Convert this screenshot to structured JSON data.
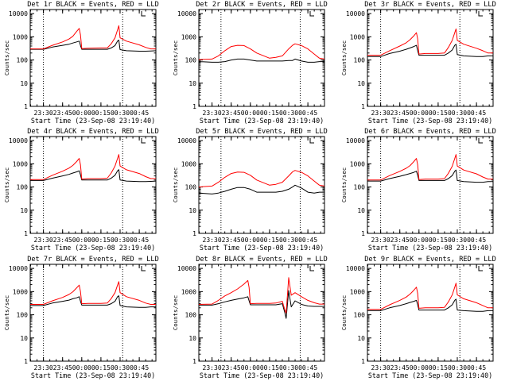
{
  "chart_data": [
    {
      "type": "line",
      "title": "Det 1r BLACK = Events, RED = LLD",
      "xlabel": "Start Time (23-Sep-08 23:19:40)",
      "ylabel": "Counts/sec",
      "y_scale": "log",
      "ylim": [
        1,
        15000
      ],
      "ytick_labels": [
        "1",
        "10",
        "100",
        "1000",
        "10000"
      ],
      "xlim": [
        "23:19:40",
        "00:58:00"
      ],
      "xtick_labels": [
        "23:30",
        "23:45",
        "00:00",
        "00:15",
        "00:30",
        "00:45"
      ],
      "vlines_dotted": [
        "23:30",
        "00:32"
      ],
      "legend_marker": "top-right",
      "x": [
        "23:19:40",
        "23:30",
        "23:37",
        "23:45",
        "23:50",
        "23:53",
        "23:56",
        "23:58",
        "23:59",
        "00:00",
        "00:05",
        "00:15",
        "00:20",
        "00:23",
        "00:26",
        "00:28",
        "00:29",
        "00:30",
        "00:35",
        "00:45",
        "00:50",
        "00:54",
        "00:58"
      ],
      "series": [
        {
          "name": "BLACK = Events",
          "color": "#000000",
          "values": [
            290,
            290,
            360,
            430,
            480,
            540,
            600,
            650,
            420,
            290,
            290,
            290,
            290,
            330,
            420,
            650,
            720,
            280,
            250,
            240,
            240,
            245,
            250
          ]
        },
        {
          "name": "RED = LLD",
          "color": "#ff0000",
          "values": [
            300,
            300,
            430,
            600,
            800,
            1050,
            1700,
            2300,
            1200,
            310,
            320,
            330,
            330,
            500,
            900,
            2000,
            3000,
            900,
            650,
            450,
            350,
            300,
            300
          ]
        }
      ]
    },
    {
      "type": "line",
      "title": "Det 2r BLACK = Events, RED = LLD",
      "xlabel": "Start Time (23-Sep-08 23:19:40)",
      "ylabel": "Counts/sec",
      "y_scale": "log",
      "ylim": [
        1,
        15000
      ],
      "ytick_labels": [
        "1",
        "10",
        "100",
        "1000",
        "10000"
      ],
      "xlim": [
        "23:19:40",
        "00:58:00"
      ],
      "xtick_labels": [
        "23:30",
        "23:45",
        "00:00",
        "00:15",
        "00:30",
        "00:45"
      ],
      "vlines_dotted": [
        "23:37",
        "00:39"
      ],
      "legend_marker": "top-right",
      "x": [
        "23:19:40",
        "23:30",
        "23:35",
        "23:40",
        "23:45",
        "23:50",
        "23:55",
        "00:00",
        "00:05",
        "00:15",
        "00:20",
        "00:25",
        "00:30",
        "00:33",
        "00:35",
        "00:40",
        "00:45",
        "00:50",
        "00:54",
        "00:58"
      ],
      "series": [
        {
          "name": "BLACK = Events",
          "color": "#000000",
          "values": [
            85,
            80,
            80,
            85,
            100,
            110,
            110,
            100,
            90,
            90,
            90,
            90,
            95,
            95,
            110,
            90,
            80,
            80,
            85,
            85
          ]
        },
        {
          "name": "RED = LLD",
          "color": "#ff0000",
          "values": [
            105,
            110,
            150,
            250,
            380,
            430,
            420,
            300,
            200,
            120,
            130,
            150,
            300,
            430,
            500,
            420,
            300,
            180,
            120,
            110
          ]
        }
      ]
    },
    {
      "type": "line",
      "title": "Det 3r BLACK = Events, RED = LLD",
      "xlabel": "Start Time (23-Sep-08 23:19:40)",
      "ylabel": "Counts/sec",
      "y_scale": "log",
      "ylim": [
        1,
        15000
      ],
      "ytick_labels": [
        "1",
        "10",
        "100",
        "1000",
        "10000"
      ],
      "xlim": [
        "23:19:40",
        "00:58:00"
      ],
      "xtick_labels": [
        "23:30",
        "23:45",
        "00:00",
        "00:15",
        "00:30",
        "00:45"
      ],
      "vlines_dotted": [
        "23:30",
        "00:32"
      ],
      "legend_marker": "top-right",
      "x": [
        "23:19:40",
        "23:30",
        "23:37",
        "23:45",
        "23:50",
        "23:53",
        "23:56",
        "23:58",
        "23:59",
        "00:00",
        "00:05",
        "00:15",
        "00:20",
        "00:23",
        "00:26",
        "00:28",
        "00:29",
        "00:30",
        "00:35",
        "00:45",
        "00:50",
        "00:54",
        "00:58"
      ],
      "series": [
        {
          "name": "BLACK = Events",
          "color": "#000000",
          "values": [
            140,
            140,
            190,
            240,
            290,
            330,
            380,
            430,
            250,
            160,
            160,
            160,
            160,
            200,
            270,
            430,
            480,
            170,
            150,
            140,
            140,
            150,
            150
          ]
        },
        {
          "name": "RED = LLD",
          "color": "#ff0000",
          "values": [
            160,
            160,
            250,
            400,
            550,
            750,
            1100,
            1500,
            800,
            180,
            190,
            190,
            200,
            350,
            700,
            1500,
            2200,
            700,
            480,
            320,
            250,
            200,
            200
          ]
        }
      ]
    },
    {
      "type": "line",
      "title": "Det 4r BLACK = Events, RED = LLD",
      "xlabel": "Start Time (23-Sep-08 23:19:40)",
      "ylabel": "Counts/sec",
      "y_scale": "log",
      "ylim": [
        1,
        15000
      ],
      "ytick_labels": [
        "1",
        "10",
        "100",
        "1000",
        "10000"
      ],
      "xlim": [
        "23:19:40",
        "00:58:00"
      ],
      "xtick_labels": [
        "23:30",
        "23:45",
        "00:00",
        "00:15",
        "00:30",
        "00:45"
      ],
      "vlines_dotted": [
        "23:30",
        "00:32"
      ],
      "legend_marker": "top-right",
      "x": [
        "23:19:40",
        "23:30",
        "23:37",
        "23:45",
        "23:50",
        "23:53",
        "23:56",
        "23:58",
        "23:59",
        "00:00",
        "00:05",
        "00:15",
        "00:20",
        "00:23",
        "00:26",
        "00:28",
        "00:29",
        "00:30",
        "00:35",
        "00:45",
        "00:50",
        "00:54",
        "00:58"
      ],
      "series": [
        {
          "name": "BLACK = Events",
          "color": "#000000",
          "values": [
            190,
            190,
            240,
            300,
            350,
            400,
            450,
            500,
            330,
            200,
            200,
            200,
            200,
            240,
            320,
            500,
            560,
            200,
            180,
            170,
            170,
            175,
            180
          ]
        },
        {
          "name": "RED = LLD",
          "color": "#ff0000",
          "values": [
            210,
            210,
            320,
            480,
            650,
            850,
            1250,
            1700,
            900,
            220,
            230,
            230,
            240,
            400,
            800,
            1700,
            2500,
            800,
            550,
            380,
            280,
            230,
            230
          ]
        }
      ]
    },
    {
      "type": "line",
      "title": "Det 5r BLACK = Events, RED = LLD",
      "xlabel": "Start Time (23-Sep-08 23:19:40)",
      "ylabel": "Counts/sec",
      "y_scale": "log",
      "ylim": [
        1,
        15000
      ],
      "ytick_labels": [
        "1",
        "10",
        "100",
        "1000",
        "10000"
      ],
      "xlim": [
        "23:19:40",
        "00:58:00"
      ],
      "xtick_labels": [
        "23:30",
        "23:45",
        "00:00",
        "00:15",
        "00:30",
        "00:45"
      ],
      "vlines_dotted": [
        "23:37",
        "00:39"
      ],
      "legend_marker": "top-right",
      "x": [
        "23:19:40",
        "23:30",
        "23:35",
        "23:40",
        "23:45",
        "23:50",
        "23:55",
        "00:00",
        "00:05",
        "00:15",
        "00:20",
        "00:25",
        "00:30",
        "00:33",
        "00:35",
        "00:40",
        "00:45",
        "00:50",
        "00:54",
        "00:58"
      ],
      "series": [
        {
          "name": "BLACK = Events",
          "color": "#000000",
          "values": [
            55,
            50,
            55,
            65,
            80,
            95,
            95,
            80,
            60,
            60,
            60,
            65,
            80,
            100,
            120,
            90,
            60,
            55,
            60,
            60
          ]
        },
        {
          "name": "RED = LLD",
          "color": "#ff0000",
          "values": [
            100,
            110,
            160,
            260,
            380,
            440,
            430,
            320,
            200,
            120,
            130,
            160,
            300,
            450,
            520,
            430,
            300,
            180,
            120,
            110
          ]
        }
      ]
    },
    {
      "type": "line",
      "title": "Det 6r BLACK = Events, RED = LLD",
      "xlabel": "Start Time (23-Sep-08 23:19:40)",
      "ylabel": "Counts/sec",
      "y_scale": "log",
      "ylim": [
        1,
        15000
      ],
      "ytick_labels": [
        "1",
        "10",
        "100",
        "1000",
        "10000"
      ],
      "xlim": [
        "23:19:40",
        "00:58:00"
      ],
      "xtick_labels": [
        "23:30",
        "23:45",
        "00:00",
        "00:15",
        "00:30",
        "00:45"
      ],
      "vlines_dotted": [
        "23:30",
        "00:32"
      ],
      "legend_marker": "top-right",
      "x": [
        "23:19:40",
        "23:30",
        "23:37",
        "23:45",
        "23:50",
        "23:53",
        "23:56",
        "23:58",
        "23:59",
        "00:00",
        "00:05",
        "00:15",
        "00:20",
        "00:23",
        "00:26",
        "00:28",
        "00:29",
        "00:30",
        "00:35",
        "00:45",
        "00:50",
        "00:54",
        "00:58"
      ],
      "series": [
        {
          "name": "BLACK = Events",
          "color": "#000000",
          "values": [
            180,
            180,
            230,
            290,
            340,
            380,
            430,
            480,
            320,
            190,
            190,
            190,
            190,
            230,
            310,
            480,
            540,
            190,
            170,
            160,
            160,
            170,
            170
          ]
        },
        {
          "name": "RED = LLD",
          "color": "#ff0000",
          "values": [
            200,
            200,
            310,
            470,
            640,
            840,
            1250,
            1700,
            900,
            210,
            220,
            220,
            230,
            390,
            780,
            1700,
            2500,
            800,
            540,
            370,
            270,
            220,
            220
          ]
        }
      ]
    },
    {
      "type": "line",
      "title": "Det 7r BLACK = Events, RED = LLD",
      "xlabel": "Start Time (23-Sep-08 23:19:40)",
      "ylabel": "Counts/sec",
      "y_scale": "log",
      "ylim": [
        1,
        15000
      ],
      "ytick_labels": [
        "1",
        "10",
        "100",
        "1000",
        "10000"
      ],
      "xlim": [
        "23:19:40",
        "00:58:00"
      ],
      "xtick_labels": [
        "23:30",
        "23:45",
        "00:00",
        "00:15",
        "00:30",
        "00:45"
      ],
      "vlines_dotted": [
        "23:30",
        "00:32"
      ],
      "legend_marker": "top-right",
      "x": [
        "23:19:40",
        "23:30",
        "23:37",
        "23:45",
        "23:50",
        "23:53",
        "23:56",
        "23:58",
        "23:59",
        "00:00",
        "00:05",
        "00:15",
        "00:20",
        "00:23",
        "00:26",
        "00:28",
        "00:29",
        "00:30",
        "00:35",
        "00:45",
        "00:50",
        "00:54",
        "00:58"
      ],
      "series": [
        {
          "name": "BLACK = Events",
          "color": "#000000",
          "values": [
            250,
            250,
            320,
            380,
            430,
            490,
            540,
            600,
            380,
            260,
            260,
            260,
            260,
            300,
            380,
            600,
            660,
            250,
            220,
            210,
            210,
            220,
            220
          ]
        },
        {
          "name": "RED = LLD",
          "color": "#ff0000",
          "values": [
            280,
            280,
            400,
            560,
            750,
            980,
            1450,
            1900,
            1000,
            300,
            310,
            310,
            320,
            500,
            900,
            1900,
            2700,
            900,
            600,
            420,
            320,
            280,
            280
          ]
        }
      ]
    },
    {
      "type": "line",
      "title": "Det 8r BLACK = Events, RED = LLD",
      "xlabel": "Start Time (23-Sep-08 23:19:40)",
      "ylabel": "Counts/sec",
      "y_scale": "log",
      "ylim": [
        1,
        15000
      ],
      "ytick_labels": [
        "1",
        "10",
        "100",
        "1000",
        "10000"
      ],
      "xlim": [
        "23:19:40",
        "00:58:00"
      ],
      "xtick_labels": [
        "23:30",
        "23:45",
        "00:00",
        "00:15",
        "00:30",
        "00:45"
      ],
      "vlines_dotted": [
        "23:37",
        "00:39"
      ],
      "legend_marker": "top-right",
      "x": [
        "23:19:40",
        "23:30",
        "23:35",
        "23:40",
        "23:45",
        "23:50",
        "23:55",
        "23:58",
        "23:59",
        "00:00",
        "00:05",
        "00:15",
        "00:20",
        "00:25",
        "00:27",
        "00:28",
        "00:30",
        "00:32",
        "00:35",
        "00:40",
        "00:45",
        "00:50",
        "00:54",
        "00:58"
      ],
      "series": [
        {
          "name": "BLACK = Events",
          "color": "#000000",
          "values": [
            260,
            260,
            300,
            360,
            420,
            480,
            540,
            600,
            400,
            270,
            270,
            270,
            270,
            300,
            120,
            70,
            1100,
            220,
            400,
            280,
            240,
            230,
            230,
            230
          ]
        },
        {
          "name": "RED = LLD",
          "color": "#ff0000",
          "values": [
            280,
            290,
            420,
            650,
            900,
            1300,
            2100,
            3000,
            1500,
            300,
            310,
            310,
            320,
            380,
            160,
            120,
            4000,
            700,
            900,
            600,
            420,
            330,
            290,
            290
          ]
        }
      ]
    },
    {
      "type": "line",
      "title": "Det 9r BLACK = Events, RED = LLD",
      "xlabel": "Start Time (23-Sep-08 23:19:40)",
      "ylabel": "Counts/sec",
      "y_scale": "log",
      "ylim": [
        1,
        15000
      ],
      "ytick_labels": [
        "1",
        "10",
        "100",
        "1000",
        "10000"
      ],
      "xlim": [
        "23:19:40",
        "00:58:00"
      ],
      "xtick_labels": [
        "23:30",
        "23:45",
        "00:00",
        "00:15",
        "00:30",
        "00:45"
      ],
      "vlines_dotted": [
        "23:30",
        "00:32"
      ],
      "legend_marker": "top-right",
      "x": [
        "23:19:40",
        "23:30",
        "23:37",
        "23:45",
        "23:50",
        "23:53",
        "23:56",
        "23:58",
        "23:59",
        "00:00",
        "00:05",
        "00:15",
        "00:20",
        "00:23",
        "00:26",
        "00:28",
        "00:29",
        "00:30",
        "00:35",
        "00:45",
        "00:50",
        "00:54",
        "00:58"
      ],
      "series": [
        {
          "name": "BLACK = Events",
          "color": "#000000",
          "values": [
            150,
            150,
            200,
            250,
            300,
            340,
            380,
            420,
            270,
            160,
            160,
            160,
            160,
            200,
            270,
            420,
            470,
            160,
            150,
            140,
            140,
            150,
            150
          ]
        },
        {
          "name": "RED = LLD",
          "color": "#ff0000",
          "values": [
            170,
            170,
            270,
            420,
            580,
            780,
            1150,
            1550,
            820,
            190,
            200,
            200,
            210,
            360,
            720,
            1550,
            2300,
            720,
            490,
            330,
            250,
            200,
            200
          ]
        }
      ]
    }
  ]
}
